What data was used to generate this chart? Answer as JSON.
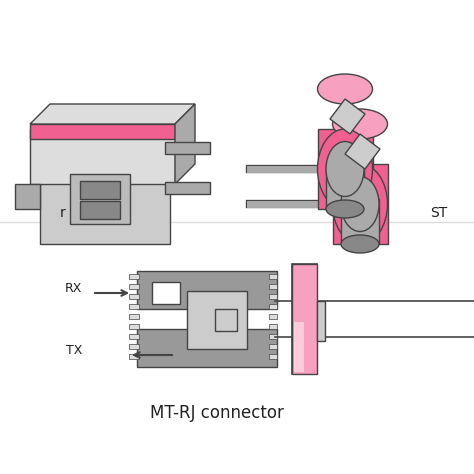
{
  "background_color": "#ffffff",
  "pink": "#F06090",
  "pink_light": "#F8A0C0",
  "gray_dark": "#888888",
  "gray_mid": "#AAAAAA",
  "gray_light": "#CCCCCC",
  "gray_lighter": "#DDDDDD",
  "gray_body": "#999999",
  "outline": "#444444",
  "label_sc": "r",
  "label_st": "ST",
  "label_mtrj": "MT-RJ connector",
  "rx_label": "RX",
  "tx_label": "TX"
}
